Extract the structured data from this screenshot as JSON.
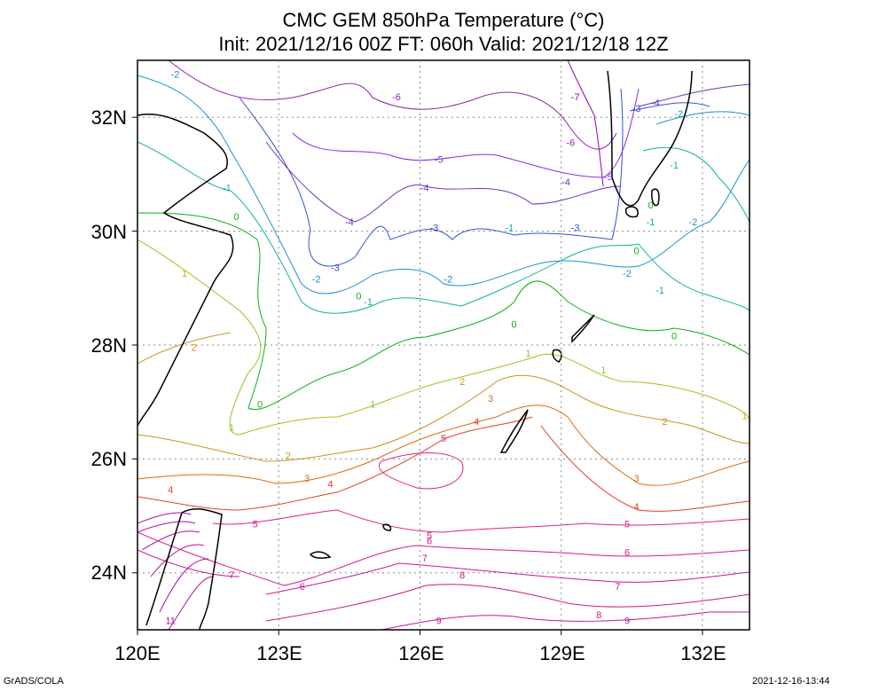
{
  "title_line1": "CMC GEM 850hPa Temperature (°C)",
  "title_line2": "Init: 2021/12/16 00Z  FT: 060h  Valid: 2021/12/18 12Z",
  "y_ticks": [
    "32N",
    "30N",
    "28N",
    "26N",
    "24N"
  ],
  "x_ticks": [
    "120E",
    "123E",
    "126E",
    "129E",
    "132E"
  ],
  "footer_left": "GrADS/COLA",
  "footer_right": "2021-12-16-13:44",
  "colors": {
    "-7": "#9400b8",
    "-6": "#9a1fb0",
    "-5": "#8a2be2",
    "-4": "#7030c0",
    "-3": "#3050e0",
    "-2": "#1e90c8",
    "-1": "#10b0a0",
    "0": "#10b010",
    "1": "#90c820",
    "2": "#d09020",
    "3": "#e06a10",
    "4": "#e04020",
    "5": "#e0208a",
    "6": "#d81890",
    "7": "#c81896",
    "8": "#d01880",
    "9": "#c01898",
    "11": "#b010a0"
  },
  "contour_labels": [
    {
      "v": "-2",
      "lon": 120.8,
      "lat": 32.7
    },
    {
      "v": "-6",
      "lon": 125.5,
      "lat": 32.3
    },
    {
      "v": "-5",
      "lon": 126.4,
      "lat": 31.2
    },
    {
      "v": "-4",
      "lon": 126.1,
      "lat": 30.7
    },
    {
      "v": "-4",
      "lon": 124.5,
      "lat": 30.1
    },
    {
      "v": "-3",
      "lon": 126.3,
      "lat": 30.0
    },
    {
      "v": "-3",
      "lon": 124.2,
      "lat": 29.3
    },
    {
      "v": "-2",
      "lon": 123.8,
      "lat": 29.1
    },
    {
      "v": "-2",
      "lon": 126.6,
      "lat": 29.1
    },
    {
      "v": "-1",
      "lon": 124.9,
      "lat": 28.7
    },
    {
      "v": "-1",
      "lon": 127.9,
      "lat": 30.0
    },
    {
      "v": "0",
      "lon": 124.7,
      "lat": 28.8
    },
    {
      "v": "0",
      "lon": 122.1,
      "lat": 30.2
    },
    {
      "v": "-1",
      "lon": 121.9,
      "lat": 30.7
    },
    {
      "v": "-7",
      "lon": 129.3,
      "lat": 32.3
    },
    {
      "v": "-6",
      "lon": 129.2,
      "lat": 31.5
    },
    {
      "v": "-5",
      "lon": 130.0,
      "lat": 30.9
    },
    {
      "v": "-4",
      "lon": 129.1,
      "lat": 30.8
    },
    {
      "v": "-3",
      "lon": 129.3,
      "lat": 30.0
    },
    {
      "v": "-2",
      "lon": 130.4,
      "lat": 29.2
    },
    {
      "v": "-1",
      "lon": 131.1,
      "lat": 28.9
    },
    {
      "v": "-3",
      "lon": 130.6,
      "lat": 32.1
    },
    {
      "v": "-4",
      "lon": 131.0,
      "lat": 32.2
    },
    {
      "v": "-2",
      "lon": 131.5,
      "lat": 32.0
    },
    {
      "v": "-2",
      "lon": 131.8,
      "lat": 30.1
    },
    {
      "v": "-1",
      "lon": 131.4,
      "lat": 31.1
    },
    {
      "v": "-1",
      "lon": 130.9,
      "lat": 30.1
    },
    {
      "v": "0",
      "lon": 130.6,
      "lat": 29.6
    },
    {
      "v": "0",
      "lon": 130.9,
      "lat": 30.4
    },
    {
      "v": "0",
      "lon": 131.4,
      "lat": 28.1
    },
    {
      "v": "0",
      "lon": 128.0,
      "lat": 28.3
    },
    {
      "v": "0",
      "lon": 122.6,
      "lat": 26.9
    },
    {
      "v": "1",
      "lon": 121.0,
      "lat": 29.2
    },
    {
      "v": "1",
      "lon": 125.0,
      "lat": 26.9
    },
    {
      "v": "1",
      "lon": 128.3,
      "lat": 27.8
    },
    {
      "v": "1",
      "lon": 129.9,
      "lat": 27.5
    },
    {
      "v": "1",
      "lon": 132.9,
      "lat": 26.7
    },
    {
      "v": "1",
      "lon": 122.0,
      "lat": 26.5
    },
    {
      "v": "2",
      "lon": 121.2,
      "lat": 27.9
    },
    {
      "v": "2",
      "lon": 123.2,
      "lat": 26.0
    },
    {
      "v": "2",
      "lon": 126.9,
      "lat": 27.3
    },
    {
      "v": "2",
      "lon": 131.2,
      "lat": 26.6
    },
    {
      "v": "3",
      "lon": 123.6,
      "lat": 25.6
    },
    {
      "v": "3",
      "lon": 127.5,
      "lat": 27.0
    },
    {
      "v": "3",
      "lon": 130.6,
      "lat": 25.6
    },
    {
      "v": "4",
      "lon": 120.7,
      "lat": 25.4
    },
    {
      "v": "4",
      "lon": 124.1,
      "lat": 25.5
    },
    {
      "v": "4",
      "lon": 127.2,
      "lat": 26.6
    },
    {
      "v": "4",
      "lon": 130.6,
      "lat": 25.1
    },
    {
      "v": "5",
      "lon": 126.5,
      "lat": 26.3
    },
    {
      "v": "5",
      "lon": 122.5,
      "lat": 24.8
    },
    {
      "v": "5",
      "lon": 126.2,
      "lat": 24.6
    },
    {
      "v": "5",
      "lon": 130.4,
      "lat": 24.8
    },
    {
      "v": "6",
      "lon": 126.2,
      "lat": 24.5
    },
    {
      "v": "6",
      "lon": 130.4,
      "lat": 24.3
    },
    {
      "v": "6",
      "lon": 123.5,
      "lat": 23.7
    },
    {
      "v": "7",
      "lon": 122.0,
      "lat": 23.9
    },
    {
      "v": "7",
      "lon": 126.1,
      "lat": 24.2
    },
    {
      "v": "7",
      "lon": 130.2,
      "lat": 23.7
    },
    {
      "v": "8",
      "lon": 126.9,
      "lat": 23.9
    },
    {
      "v": "8",
      "lon": 129.8,
      "lat": 23.2
    },
    {
      "v": "9",
      "lon": 126.4,
      "lat": 23.1
    },
    {
      "v": "9",
      "lon": 130.4,
      "lat": 23.1
    },
    {
      "v": "11",
      "lon": 120.7,
      "lat": 23.1
    }
  ]
}
